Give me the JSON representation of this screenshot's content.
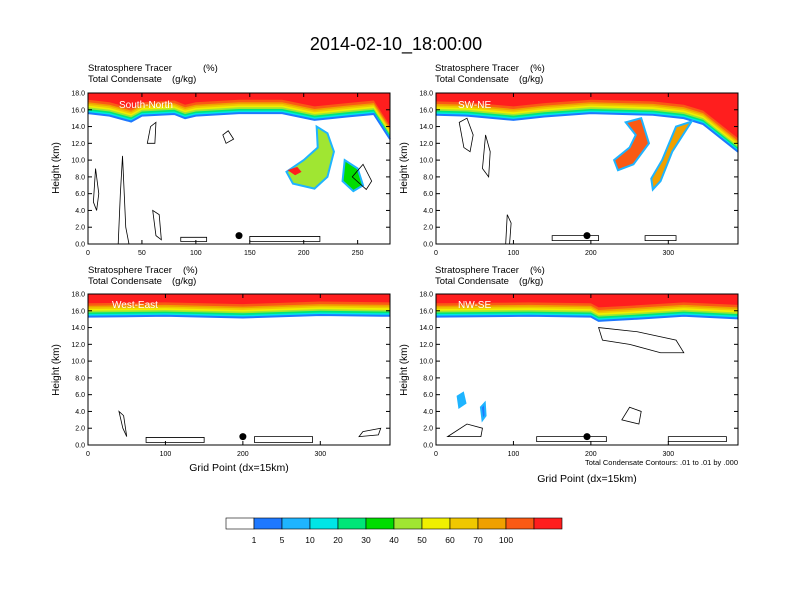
{
  "main_title": "2014-02-10_18:00:00",
  "field_labels": {
    "tracer": "Stratosphere Tracer",
    "tracer_units": "(%)",
    "condensate": "Total Condensate",
    "condensate_units": "(g/kg)"
  },
  "xlabel": "Grid Point (dx=15km)",
  "ylabel": "Height (km)",
  "contour_note": "Total Condensate Contours: .01 to .01 by .000",
  "colors": [
    "#ffffff",
    "#1e78ff",
    "#1eb4ff",
    "#00e6e6",
    "#00e678",
    "#00dc00",
    "#a0e632",
    "#f0f000",
    "#f0c800",
    "#f0a000",
    "#fa5a14",
    "#ff1e1e"
  ],
  "colorbar_labels": [
    "1",
    "5",
    "10",
    "20",
    "30",
    "40",
    "50",
    "60",
    "70",
    "100"
  ],
  "chart_data": [
    {
      "type": "heatmap",
      "name": "South-North",
      "xlim": [
        0,
        280
      ],
      "ylim": [
        0,
        18
      ],
      "xticks": [
        "0",
        "50",
        "100",
        "150",
        "200",
        "250"
      ],
      "yticks": [
        "0.0",
        "2.0",
        "4.0",
        "6.0",
        "8.0",
        "10.0",
        "12.0",
        "14.0",
        "16.0",
        "18.0"
      ],
      "marker": {
        "x": 140,
        "y": 1.0
      },
      "tropopause": [
        [
          0,
          15.6
        ],
        [
          20,
          15.3
        ],
        [
          40,
          14.6
        ],
        [
          50,
          15.3
        ],
        [
          80,
          15.5
        ],
        [
          90,
          15.0
        ],
        [
          100,
          15.3
        ],
        [
          140,
          15.6
        ],
        [
          180,
          15.6
        ],
        [
          210,
          14.8
        ],
        [
          240,
          15.2
        ],
        [
          265,
          15.5
        ],
        [
          280,
          12.5
        ]
      ],
      "intrusions": [
        {
          "path": [
            [
              212,
              14.0
            ],
            [
              222,
              13.2
            ],
            [
              228,
              11.0
            ],
            [
              222,
              8.0
            ],
            [
              210,
              6.6
            ],
            [
              190,
              7.2
            ],
            [
              184,
              8.6
            ],
            [
              200,
              10.0
            ],
            [
              213,
              11.5
            ]
          ],
          "fill": 6,
          "inner": {
            "path": [
              [
                185,
                8.8
              ],
              [
                192,
                8.2
              ],
              [
                198,
                8.6
              ],
              [
                194,
                9.2
              ]
            ],
            "fill": 11
          }
        },
        {
          "path": [
            [
              238,
              10.0
            ],
            [
              250,
              9.0
            ],
            [
              255,
              7.0
            ],
            [
              246,
              6.3
            ],
            [
              236,
              7.5
            ]
          ],
          "fill": 5
        }
      ],
      "contours": [
        {
          "path": [
            [
              28,
              0.0
            ],
            [
              30,
              6.0
            ],
            [
              32,
              10.5
            ],
            [
              35,
              2.0
            ],
            [
              38,
              0.0
            ]
          ]
        },
        {
          "path": [
            [
              60,
              4.0
            ],
            [
              63,
              1.0
            ],
            [
              68,
              0.5
            ],
            [
              66,
              3.5
            ]
          ]
        },
        {
          "path": [
            [
              55,
              12.0
            ],
            [
              58,
              14.0
            ],
            [
              63,
              14.5
            ],
            [
              62,
              12.0
            ]
          ]
        },
        {
          "path": [
            [
              125,
              13.0
            ],
            [
              130,
              13.5
            ],
            [
              135,
              12.5
            ],
            [
              128,
              12.0
            ]
          ]
        },
        {
          "path": [
            [
              86,
              0.3
            ],
            [
              110,
              0.3
            ],
            [
              110,
              0.8
            ],
            [
              86,
              0.8
            ]
          ]
        },
        {
          "path": [
            [
              150,
              0.3
            ],
            [
              215,
              0.3
            ],
            [
              215,
              0.9
            ],
            [
              150,
              0.9
            ]
          ]
        },
        {
          "path": [
            [
              245,
              8.0
            ],
            [
              258,
              6.5
            ],
            [
              263,
              7.5
            ],
            [
              255,
              9.5
            ]
          ]
        },
        {
          "path": [
            [
              5,
              5.0
            ],
            [
              7,
              9.0
            ],
            [
              10,
              6.0
            ],
            [
              8,
              4.0
            ]
          ]
        }
      ]
    },
    {
      "type": "heatmap",
      "name": "SW-NE",
      "xlim": [
        0,
        390
      ],
      "ylim": [
        0,
        18
      ],
      "xticks": [
        "0",
        "100",
        "200",
        "300"
      ],
      "yticks": [
        "0.0",
        "2.0",
        "4.0",
        "6.0",
        "8.0",
        "10.0",
        "12.0",
        "14.0",
        "16.0",
        "18.0"
      ],
      "marker": {
        "x": 195,
        "y": 1.0
      },
      "tropopause": [
        [
          0,
          15.4
        ],
        [
          40,
          15.3
        ],
        [
          100,
          14.8
        ],
        [
          140,
          15.2
        ],
        [
          200,
          15.6
        ],
        [
          280,
          15.4
        ],
        [
          320,
          15.0
        ],
        [
          345,
          14.3
        ],
        [
          390,
          11.0
        ]
      ],
      "intrusions": [
        {
          "path": [
            [
              245,
              14.5
            ],
            [
              265,
              15.0
            ],
            [
              275,
              12.0
            ],
            [
              255,
              9.5
            ],
            [
              235,
              8.8
            ],
            [
              230,
              10.0
            ],
            [
              250,
              11.5
            ],
            [
              258,
              13.0
            ]
          ],
          "fill": 10
        },
        {
          "path": [
            [
              310,
              14.0
            ],
            [
              330,
              14.6
            ],
            [
              305,
              11.0
            ],
            [
              290,
              7.5
            ],
            [
              280,
              6.5
            ],
            [
              278,
              7.8
            ],
            [
              292,
              10.0
            ]
          ],
          "fill": 9
        }
      ],
      "contours": [
        {
          "path": [
            [
              30,
              14.5
            ],
            [
              40,
              15.0
            ],
            [
              48,
              13.0
            ],
            [
              44,
              11.0
            ],
            [
              36,
              11.5
            ]
          ]
        },
        {
          "path": [
            [
              60,
              9.0
            ],
            [
              64,
              13.0
            ],
            [
              70,
              11.0
            ],
            [
              68,
              8.0
            ]
          ]
        },
        {
          "path": [
            [
              150,
              0.4
            ],
            [
              210,
              0.4
            ],
            [
              210,
              1.0
            ],
            [
              150,
              1.0
            ]
          ]
        },
        {
          "path": [
            [
              270,
              0.4
            ],
            [
              310,
              0.4
            ],
            [
              310,
              1.0
            ],
            [
              270,
              1.0
            ]
          ]
        },
        {
          "path": [
            [
              90,
              0.0
            ],
            [
              92,
              3.5
            ],
            [
              97,
              2.5
            ],
            [
              95,
              0.0
            ]
          ]
        }
      ]
    },
    {
      "type": "heatmap",
      "name": "West-East",
      "xlim": [
        0,
        390
      ],
      "ylim": [
        0,
        18
      ],
      "xticks": [
        "0",
        "100",
        "200",
        "300"
      ],
      "yticks": [
        "0.0",
        "2.0",
        "4.0",
        "6.0",
        "8.0",
        "10.0",
        "12.0",
        "14.0",
        "16.0",
        "18.0"
      ],
      "marker": {
        "x": 200,
        "y": 1.0
      },
      "tropopause": [
        [
          0,
          15.3
        ],
        [
          100,
          15.4
        ],
        [
          200,
          15.2
        ],
        [
          300,
          15.5
        ],
        [
          390,
          15.4
        ]
      ],
      "intrusions": [],
      "contours": [
        {
          "path": [
            [
              40,
              4.0
            ],
            [
              45,
              2.0
            ],
            [
              50,
              1.0
            ],
            [
              46,
              3.5
            ]
          ]
        },
        {
          "path": [
            [
              215,
              0.3
            ],
            [
              290,
              0.3
            ],
            [
              290,
              1.0
            ],
            [
              215,
              1.0
            ]
          ]
        },
        {
          "path": [
            [
              350,
              1.0
            ],
            [
              375,
              1.2
            ],
            [
              378,
              2.0
            ],
            [
              355,
              1.6
            ]
          ]
        },
        {
          "path": [
            [
              75,
              0.3
            ],
            [
              150,
              0.3
            ],
            [
              150,
              0.9
            ],
            [
              75,
              0.9
            ]
          ]
        }
      ]
    },
    {
      "type": "heatmap",
      "name": "NW-SE",
      "xlim": [
        0,
        390
      ],
      "ylim": [
        0,
        18
      ],
      "xticks": [
        "0",
        "100",
        "200",
        "300"
      ],
      "yticks": [
        "0.0",
        "2.0",
        "4.0",
        "6.0",
        "8.0",
        "10.0",
        "12.0",
        "14.0",
        "16.0",
        "18.0"
      ],
      "marker": {
        "x": 195,
        "y": 1.0
      },
      "tropopause": [
        [
          0,
          15.3
        ],
        [
          120,
          15.4
        ],
        [
          200,
          15.3
        ],
        [
          210,
          14.8
        ],
        [
          250,
          15.0
        ],
        [
          320,
          15.4
        ],
        [
          390,
          15.1
        ]
      ],
      "intrusions": [
        {
          "path": [
            [
              28,
              5.8
            ],
            [
              35,
              6.2
            ],
            [
              38,
              5.0
            ],
            [
              30,
              4.5
            ]
          ],
          "fill": 2
        },
        {
          "path": [
            [
              58,
              4.5
            ],
            [
              63,
              5.0
            ],
            [
              64,
              3.5
            ],
            [
              60,
              3.0
            ]
          ],
          "fill": 1
        }
      ],
      "contours": [
        {
          "path": [
            [
              210,
              14.0
            ],
            [
              260,
              13.5
            ],
            [
              310,
              12.5
            ],
            [
              320,
              11.0
            ],
            [
              290,
              11.0
            ],
            [
              250,
              12.0
            ],
            [
              215,
              12.5
            ]
          ]
        },
        {
          "path": [
            [
              240,
              3.0
            ],
            [
              250,
              4.5
            ],
            [
              265,
              4.0
            ],
            [
              262,
              2.5
            ]
          ]
        },
        {
          "path": [
            [
              130,
              0.4
            ],
            [
              220,
              0.4
            ],
            [
              220,
              1.0
            ],
            [
              130,
              1.0
            ]
          ]
        },
        {
          "path": [
            [
              300,
              0.4
            ],
            [
              375,
              0.4
            ],
            [
              375,
              1.0
            ],
            [
              300,
              1.0
            ]
          ]
        },
        {
          "path": [
            [
              15,
              1.0
            ],
            [
              40,
              2.5
            ],
            [
              60,
              2.0
            ],
            [
              58,
              1.0
            ]
          ]
        }
      ]
    }
  ]
}
